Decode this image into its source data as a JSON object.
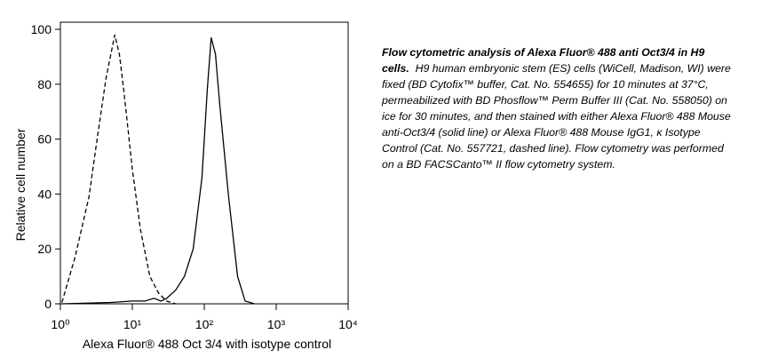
{
  "chart_data": {
    "type": "line",
    "x_label": "Alexa Fluor® 488 Oct 3/4 with isotype control",
    "y_label": "Relative cell number",
    "log_x": true,
    "xlim": [
      1,
      10000
    ],
    "xticks": [
      {
        "value": 1,
        "label": "10⁰"
      },
      {
        "value": 10,
        "label": "10¹"
      },
      {
        "value": 100,
        "label": "10²"
      },
      {
        "value": 1000,
        "label": "10³"
      },
      {
        "value": 10000,
        "label": "10⁴"
      }
    ],
    "ylim": [
      0,
      100
    ],
    "yticks": [
      0,
      20,
      40,
      60,
      80,
      100
    ],
    "series": [
      {
        "color": "#000000",
        "dash": true,
        "x": [
          1.05,
          1.6,
          2.5,
          3.2,
          4.3,
          5.7,
          6.6,
          7.6,
          10,
          13,
          17.5,
          23,
          30,
          40
        ],
        "values": [
          0.5,
          17,
          39,
          59,
          82,
          98,
          91,
          78,
          49,
          27,
          10,
          4,
          1,
          0
        ]
      },
      {
        "color": "#000000",
        "dash": false,
        "x": [
          1.05,
          5,
          10,
          15,
          20,
          25,
          30,
          40,
          53,
          70,
          93,
          110,
          125,
          143,
          165,
          218,
          290,
          370,
          500
        ],
        "values": [
          0,
          0.5,
          1,
          1,
          2,
          1,
          2,
          5,
          10,
          20,
          46,
          78,
          97,
          91,
          72,
          39,
          10,
          1,
          0
        ]
      }
    ]
  },
  "caption": {
    "title": "Flow cytometric analysis of Alexa Fluor® 488 anti Oct3/4 in H9 cells.",
    "text": "H9 human embryonic stem (ES) cells (WiCell, Madison, WI) were fixed (BD Cytofix™ buffer, Cat. No. 554655) for 10 minutes at 37°C, permeabilized with BD Phosflow™ Perm Buffer III (Cat. No. 558050) on ice for 30 minutes, and then stained with either Alexa Fluor® 488 Mouse anti-Oct3/4 (solid line) or Alexa Fluor® 488 Mouse IgG1, κ Isotype Control (Cat. No. 557721, dashed line). Flow cytometry was performed on a BD FACSCanto™ II flow cytometry system."
  }
}
